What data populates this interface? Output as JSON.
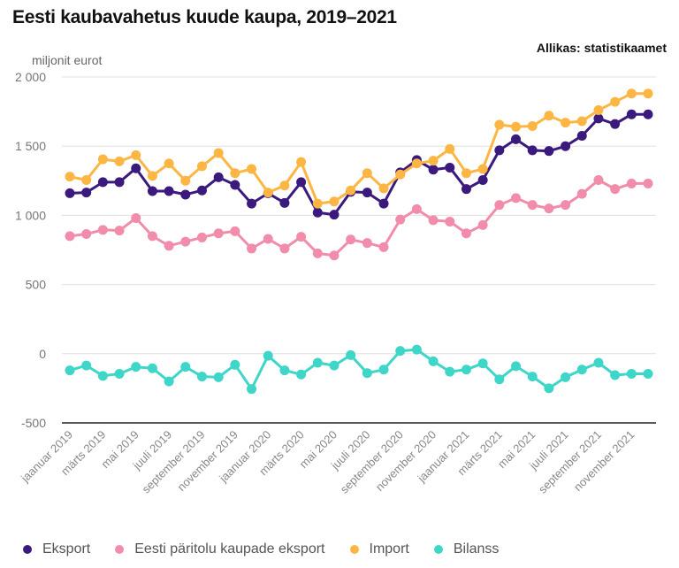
{
  "chart_data": {
    "type": "line",
    "title": "Eesti kaubavahetus kuude kaupa, 2019–2021",
    "source": "Allikas: statistikaamet",
    "ylabel": "miljonit eurot",
    "xlabel": "",
    "ylim": [
      -500,
      2000
    ],
    "yticks": [
      2000,
      1500,
      1000,
      500,
      0,
      -500
    ],
    "ytick_labels": [
      "2 000",
      "1 500",
      "1 000",
      "500",
      "0",
      "-500"
    ],
    "grid": true,
    "legend_position": "bottom-left",
    "x": [
      "jaanuar 2019",
      "veebruar 2019",
      "märts 2019",
      "aprill 2019",
      "mai 2019",
      "juuni 2019",
      "juuli 2019",
      "august 2019",
      "september 2019",
      "oktoober 2019",
      "november 2019",
      "detsember 2019",
      "jaanuar 2020",
      "veebruar 2020",
      "märts 2020",
      "aprill 2020",
      "mai 2020",
      "juuni 2020",
      "juuli 2020",
      "august 2020",
      "september 2020",
      "oktoober 2020",
      "november 2020",
      "detsember 2020",
      "jaanuar 2021",
      "veebruar 2021",
      "märts 2021",
      "aprill 2021",
      "mai 2021",
      "juuni 2021",
      "juuli 2021",
      "august 2021",
      "september 2021",
      "oktoober 2021",
      "november 2021",
      "detsember 2021"
    ],
    "xtick_labels": [
      "jaanuar 2019",
      "märts 2019",
      "mai 2019",
      "juuli 2019",
      "september 2019",
      "november 2019",
      "jaanuar 2020",
      "märts 2020",
      "mai 2020",
      "juuli 2020",
      "september 2020",
      "november 2020",
      "jaanuar 2021",
      "märts 2021",
      "mai 2021",
      "juuli 2021",
      "september 2021",
      "november 2021"
    ],
    "series": [
      {
        "name": "Eksport",
        "color": "#3b1a7e",
        "values": [
          1160,
          1165,
          1240,
          1240,
          1340,
          1175,
          1175,
          1150,
          1180,
          1275,
          1220,
          1085,
          1160,
          1090,
          1240,
          1020,
          1005,
          1170,
          1165,
          1085,
          1310,
          1400,
          1330,
          1345,
          1190,
          1255,
          1470,
          1550,
          1470,
          1465,
          1500,
          1575,
          1700,
          1660,
          1730,
          1730
        ]
      },
      {
        "name": "Eesti päritolu kaupade eksport",
        "color": "#f28cab",
        "values": [
          850,
          865,
          895,
          890,
          980,
          850,
          780,
          810,
          840,
          870,
          885,
          760,
          830,
          760,
          845,
          725,
          710,
          825,
          800,
          770,
          970,
          1045,
          965,
          955,
          870,
          930,
          1075,
          1125,
          1075,
          1050,
          1075,
          1155,
          1255,
          1190,
          1230,
          1230
        ]
      },
      {
        "name": "Import",
        "color": "#fdb643",
        "values": [
          1280,
          1255,
          1405,
          1390,
          1435,
          1285,
          1375,
          1250,
          1355,
          1450,
          1305,
          1335,
          1165,
          1215,
          1385,
          1085,
          1100,
          1180,
          1305,
          1195,
          1295,
          1375,
          1395,
          1480,
          1305,
          1335,
          1655,
          1640,
          1645,
          1720,
          1670,
          1680,
          1760,
          1820,
          1880,
          1880
        ]
      },
      {
        "name": "Bilanss",
        "color": "#3dd6c8",
        "values": [
          -120,
          -85,
          -160,
          -145,
          -95,
          -105,
          -200,
          -95,
          -165,
          -170,
          -80,
          -255,
          -15,
          -120,
          -150,
          -65,
          -85,
          -10,
          -140,
          -115,
          20,
          30,
          -55,
          -130,
          -115,
          -70,
          -185,
          -90,
          -165,
          -250,
          -170,
          -115,
          -65,
          -155,
          -145,
          -145
        ]
      }
    ]
  }
}
